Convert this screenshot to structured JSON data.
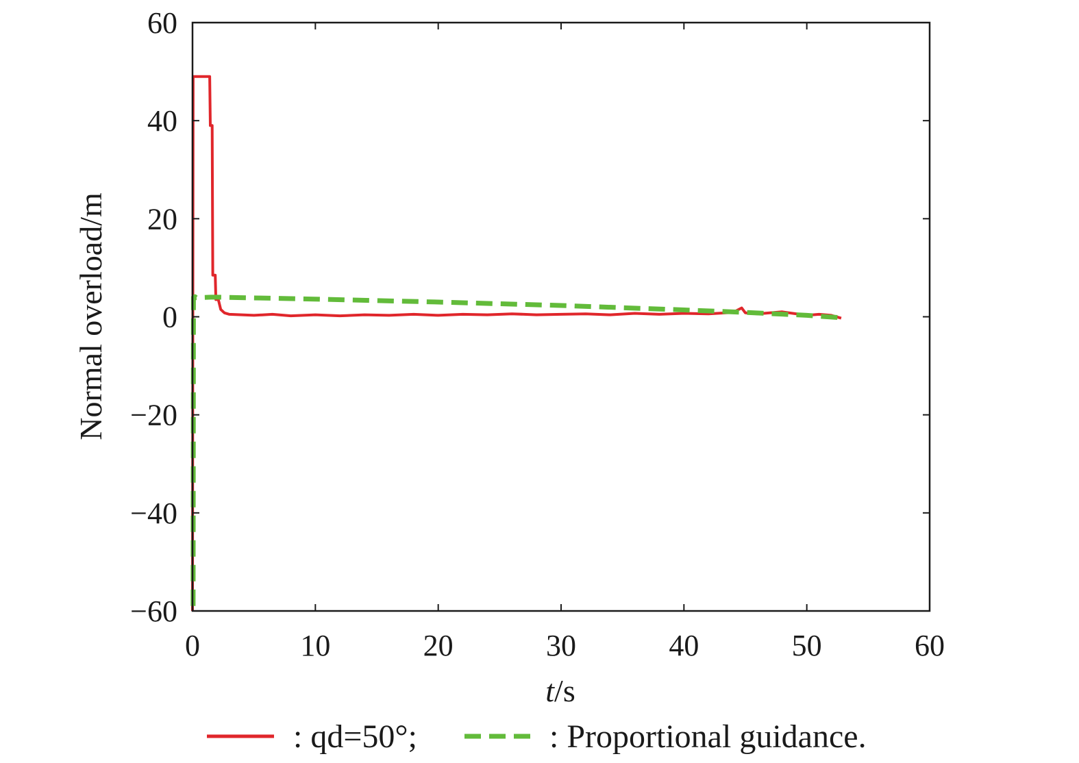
{
  "chart_data": {
    "type": "line",
    "xlabel_italic": "t",
    "xlabel_unit": "/s",
    "ylabel": "Normal overload/m",
    "xlim": [
      0,
      60
    ],
    "ylim": [
      -60,
      60
    ],
    "x_ticks": [
      0,
      10,
      20,
      30,
      40,
      50,
      60
    ],
    "y_ticks": [
      {
        "value": -60,
        "label": "−60"
      },
      {
        "value": -40,
        "label": "−40"
      },
      {
        "value": -20,
        "label": "−20"
      },
      {
        "value": 0,
        "label": "0"
      },
      {
        "value": 20,
        "label": "20"
      },
      {
        "value": 40,
        "label": "40"
      },
      {
        "value": 60,
        "label": "60"
      }
    ],
    "grid": false,
    "legend_position": "bottom",
    "series": [
      {
        "name": ": qd=50°;",
        "color": "#e0262b",
        "style": "solid",
        "points": [
          [
            0,
            -60
          ],
          [
            0.05,
            49
          ],
          [
            1.4,
            49
          ],
          [
            1.45,
            39
          ],
          [
            1.6,
            39
          ],
          [
            1.65,
            8.5
          ],
          [
            1.85,
            8.5
          ],
          [
            1.9,
            3.5
          ],
          [
            2.1,
            3.5
          ],
          [
            2.3,
            1.5
          ],
          [
            2.6,
            0.8
          ],
          [
            3,
            0.5
          ],
          [
            5,
            0.3
          ],
          [
            6.5,
            0.5
          ],
          [
            8,
            0.2
          ],
          [
            10,
            0.4
          ],
          [
            12,
            0.2
          ],
          [
            14,
            0.4
          ],
          [
            16,
            0.3
          ],
          [
            18,
            0.5
          ],
          [
            20,
            0.3
          ],
          [
            22,
            0.5
          ],
          [
            24,
            0.4
          ],
          [
            26,
            0.6
          ],
          [
            28,
            0.4
          ],
          [
            30,
            0.5
          ],
          [
            32,
            0.6
          ],
          [
            34,
            0.4
          ],
          [
            36,
            0.7
          ],
          [
            38,
            0.5
          ],
          [
            40,
            0.7
          ],
          [
            42,
            0.6
          ],
          [
            44,
            0.9
          ],
          [
            44.7,
            1.8
          ],
          [
            45,
            0.8
          ],
          [
            46,
            0.6
          ],
          [
            48,
            1.0
          ],
          [
            50,
            0.3
          ],
          [
            51,
            0.5
          ],
          [
            52,
            0.3
          ],
          [
            52.8,
            -0.3
          ]
        ]
      },
      {
        "name": ": Proportional guidance.",
        "color": "#62bb3a",
        "style": "dashed",
        "points": [
          [
            0.05,
            -59
          ],
          [
            0.08,
            4
          ],
          [
            0.2,
            4.1
          ],
          [
            0.3,
            3.9
          ],
          [
            1.5,
            4.0
          ],
          [
            2,
            4.0
          ],
          [
            10,
            3.6
          ],
          [
            20,
            3.0
          ],
          [
            30,
            2.3
          ],
          [
            40,
            1.4
          ],
          [
            45,
            0.9
          ],
          [
            50,
            0.3
          ],
          [
            52.8,
            -0.2
          ]
        ]
      }
    ]
  }
}
